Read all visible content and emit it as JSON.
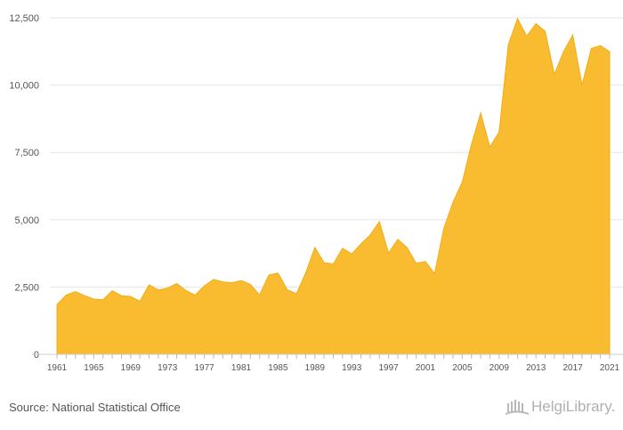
{
  "chart_data": {
    "type": "area",
    "x": [
      1961,
      1962,
      1963,
      1964,
      1965,
      1966,
      1967,
      1968,
      1969,
      1970,
      1971,
      1972,
      1973,
      1974,
      1975,
      1976,
      1977,
      1978,
      1979,
      1980,
      1981,
      1982,
      1983,
      1984,
      1985,
      1986,
      1987,
      1988,
      1989,
      1990,
      1991,
      1992,
      1993,
      1994,
      1995,
      1996,
      1997,
      1998,
      1999,
      2000,
      2001,
      2002,
      2003,
      2004,
      2005,
      2006,
      2007,
      2008,
      2009,
      2010,
      2011,
      2012,
      2013,
      2014,
      2015,
      2016,
      2017,
      2018,
      2019,
      2020,
      2021
    ],
    "values": [
      1850,
      2200,
      2330,
      2180,
      2050,
      2030,
      2360,
      2180,
      2150,
      1970,
      2580,
      2390,
      2460,
      2630,
      2370,
      2200,
      2540,
      2780,
      2690,
      2660,
      2740,
      2600,
      2200,
      2950,
      3020,
      2400,
      2250,
      3020,
      3970,
      3400,
      3360,
      3940,
      3730,
      4100,
      4430,
      4930,
      3760,
      4270,
      3970,
      3380,
      3450,
      3000,
      4680,
      5650,
      6400,
      7800,
      8970,
      7700,
      8260,
      11500,
      12470,
      11820,
      12280,
      12000,
      10400,
      11250,
      11860,
      10000,
      11360,
      11470,
      11240
    ],
    "xlabel": "",
    "ylabel": "",
    "ylim": [
      0,
      12500
    ],
    "yticks": [
      "0",
      "2,500",
      "5,000",
      "7,500",
      "10,000",
      "12,500"
    ],
    "ytick_values": [
      0,
      2500,
      5000,
      7500,
      10000,
      12500
    ],
    "xticks": [
      "1961",
      "1965",
      "1969",
      "1973",
      "1977",
      "1981",
      "1985",
      "1989",
      "1993",
      "1997",
      "2001",
      "2005",
      "2009",
      "2013",
      "2017",
      "2021"
    ],
    "grid": true,
    "fill_color": "#f9bb30"
  },
  "source_text": "Source: National Statistical Office",
  "logo_text": "HelgiLibrary."
}
